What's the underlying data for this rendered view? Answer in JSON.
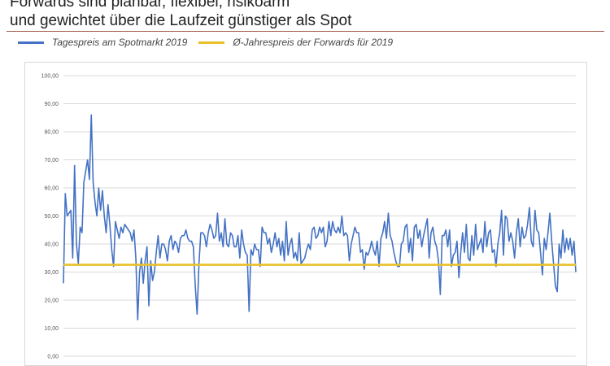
{
  "header": {
    "title_line1": "Forwards sind planbar, flexibel, risikoarm",
    "title_line2": "und gewichtet über die Laufzeit günstiger als Spot"
  },
  "colors": {
    "spot": "#4472c4",
    "forward": "#e8c12a",
    "grid": "#d9d9d9",
    "title_rule": "#a05a4a"
  },
  "chart_data": {
    "type": "line",
    "title": "",
    "xlabel": "",
    "ylabel": "",
    "ylim": [
      0,
      100
    ],
    "y_ticks": [
      "0,00",
      "10,00",
      "20,00",
      "30,00",
      "40,00",
      "50,00",
      "60,00",
      "70,00",
      "80,00",
      "90,00",
      "100,00"
    ],
    "grid": "horizontal",
    "legend_position": "top",
    "series": [
      {
        "name": "Tagespreis am Spotmarkt 2019",
        "color": "#4472c4",
        "values": [
          26,
          58,
          50,
          51,
          52,
          35,
          68,
          40,
          33,
          46,
          44,
          62,
          66,
          70,
          63,
          86,
          62,
          55,
          50,
          60,
          52,
          59,
          50,
          44,
          54,
          47,
          38,
          32,
          48,
          45,
          42,
          46,
          44,
          47,
          46,
          45,
          44,
          41,
          45,
          35,
          13,
          30,
          35,
          26,
          34,
          39,
          18,
          34,
          27,
          30,
          37,
          43,
          35,
          40,
          40,
          38,
          34,
          41,
          43,
          38,
          41,
          40,
          37,
          42,
          43,
          43,
          45,
          42,
          41,
          41,
          39,
          25,
          15,
          33,
          44,
          44,
          43,
          39,
          44,
          47,
          45,
          42,
          43,
          51,
          41,
          44,
          39,
          49,
          40,
          39,
          44,
          43,
          39,
          39,
          43,
          35,
          45,
          40,
          37,
          36,
          16,
          38,
          36,
          40,
          38,
          38,
          32,
          46,
          44,
          44,
          40,
          42,
          37,
          40,
          44,
          39,
          42,
          36,
          41,
          34,
          48,
          36,
          40,
          42,
          35,
          37,
          34,
          44,
          33,
          34,
          35,
          38,
          40,
          38,
          45,
          46,
          42,
          43,
          46,
          44,
          46,
          39,
          41,
          48,
          43,
          48,
          45,
          44,
          46,
          44,
          50,
          43,
          44,
          43,
          34,
          40,
          43,
          46,
          44,
          44,
          37,
          38,
          31,
          37,
          36,
          38,
          41,
          38,
          36,
          41,
          32,
          42,
          44,
          48,
          42,
          51,
          43,
          41,
          37,
          34,
          32,
          32,
          40,
          41,
          46,
          47,
          37,
          42,
          34,
          46,
          47,
          42,
          45,
          39,
          43,
          46,
          49,
          35,
          44,
          46,
          41,
          39,
          34,
          22,
          43,
          43,
          45,
          39,
          45,
          32,
          36,
          37,
          41,
          28,
          37,
          44,
          37,
          47,
          35,
          34,
          43,
          36,
          47,
          38,
          40,
          42,
          37,
          48,
          39,
          44,
          45,
          37,
          38,
          32,
          40,
          44,
          52,
          36,
          50,
          49,
          41,
          44,
          41,
          35,
          44,
          49,
          39,
          46,
          42,
          43,
          47,
          53,
          41,
          39,
          52,
          45,
          44,
          37,
          29,
          42,
          38,
          44,
          51,
          41,
          33,
          25,
          23,
          40,
          35,
          45,
          37,
          42,
          38,
          42,
          36,
          41,
          30
        ]
      },
      {
        "name": "Ø-Jahrespreis der Forwards für 2019",
        "color": "#e8c12a",
        "values": [
          32.6,
          32.6
        ]
      }
    ]
  }
}
